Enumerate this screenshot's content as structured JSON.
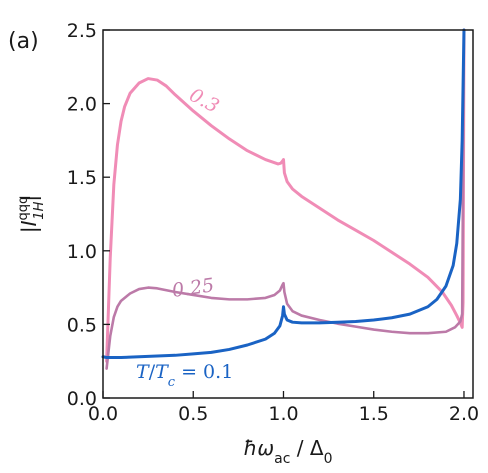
{
  "panel_label": "(a)",
  "chart_data": {
    "type": "line",
    "title": "",
    "xlabel": "ħω_ac / Δ_0",
    "ylabel": "|I_{1H}^{qqq}|",
    "xlim": [
      0.0,
      2.05
    ],
    "ylim": [
      0.0,
      2.5
    ],
    "xticks": [
      0.0,
      0.5,
      1.0,
      1.5,
      2.0
    ],
    "xtick_labels": [
      "0.0",
      "0.5",
      "1.0",
      "1.5",
      "2.0"
    ],
    "yticks": [
      0.0,
      0.5,
      1.0,
      1.5,
      2.0,
      2.5
    ],
    "ytick_labels": [
      "0.0",
      "0.5",
      "1.0",
      "1.5",
      "2.0",
      "2.5"
    ],
    "grid": false,
    "series": [
      {
        "name": "0.3",
        "label_text": "0.3",
        "color": "#f08cb6",
        "points": [
          [
            0.02,
            0.25
          ],
          [
            0.04,
            0.95
          ],
          [
            0.06,
            1.45
          ],
          [
            0.08,
            1.72
          ],
          [
            0.1,
            1.88
          ],
          [
            0.12,
            1.98
          ],
          [
            0.15,
            2.07
          ],
          [
            0.2,
            2.14
          ],
          [
            0.25,
            2.17
          ],
          [
            0.3,
            2.16
          ],
          [
            0.35,
            2.12
          ],
          [
            0.4,
            2.06
          ],
          [
            0.5,
            1.95
          ],
          [
            0.6,
            1.85
          ],
          [
            0.7,
            1.76
          ],
          [
            0.8,
            1.68
          ],
          [
            0.9,
            1.62
          ],
          [
            0.97,
            1.59
          ],
          [
            0.985,
            1.595
          ],
          [
            0.995,
            1.61
          ],
          [
            1.0,
            1.62
          ],
          [
            1.005,
            1.53
          ],
          [
            1.02,
            1.47
          ],
          [
            1.05,
            1.42
          ],
          [
            1.1,
            1.37
          ],
          [
            1.2,
            1.29
          ],
          [
            1.3,
            1.21
          ],
          [
            1.4,
            1.14
          ],
          [
            1.5,
            1.07
          ],
          [
            1.6,
            0.99
          ],
          [
            1.7,
            0.91
          ],
          [
            1.8,
            0.82
          ],
          [
            1.88,
            0.72
          ],
          [
            1.93,
            0.63
          ],
          [
            1.96,
            0.56
          ],
          [
            1.98,
            0.51
          ],
          [
            1.99,
            0.48
          ],
          [
            1.995,
            0.65
          ],
          [
            2.0,
            2.5
          ]
        ]
      },
      {
        "name": "0.25",
        "label_text": "0.25",
        "color": "#bc7aa8",
        "points": [
          [
            0.02,
            0.2
          ],
          [
            0.04,
            0.42
          ],
          [
            0.06,
            0.55
          ],
          [
            0.08,
            0.62
          ],
          [
            0.1,
            0.66
          ],
          [
            0.15,
            0.71
          ],
          [
            0.2,
            0.74
          ],
          [
            0.25,
            0.75
          ],
          [
            0.3,
            0.745
          ],
          [
            0.4,
            0.72
          ],
          [
            0.5,
            0.7
          ],
          [
            0.6,
            0.68
          ],
          [
            0.7,
            0.67
          ],
          [
            0.8,
            0.67
          ],
          [
            0.9,
            0.68
          ],
          [
            0.95,
            0.7
          ],
          [
            0.98,
            0.73
          ],
          [
            0.995,
            0.77
          ],
          [
            1.0,
            0.78
          ],
          [
            1.005,
            0.72
          ],
          [
            1.02,
            0.64
          ],
          [
            1.05,
            0.59
          ],
          [
            1.1,
            0.56
          ],
          [
            1.2,
            0.53
          ],
          [
            1.3,
            0.505
          ],
          [
            1.4,
            0.485
          ],
          [
            1.5,
            0.465
          ],
          [
            1.6,
            0.45
          ],
          [
            1.7,
            0.44
          ],
          [
            1.8,
            0.44
          ],
          [
            1.9,
            0.45
          ],
          [
            1.95,
            0.48
          ],
          [
            1.98,
            0.52
          ],
          [
            1.99,
            0.57
          ],
          [
            2.0,
            2.5
          ]
        ]
      },
      {
        "name": "T/T_c = 0.1",
        "label_text": "T/T_c = 0.1",
        "color": "#1a63c4",
        "points": [
          [
            0.0,
            0.28
          ],
          [
            0.02,
            0.275
          ],
          [
            0.1,
            0.275
          ],
          [
            0.2,
            0.28
          ],
          [
            0.3,
            0.285
          ],
          [
            0.4,
            0.29
          ],
          [
            0.5,
            0.3
          ],
          [
            0.6,
            0.31
          ],
          [
            0.7,
            0.33
          ],
          [
            0.8,
            0.36
          ],
          [
            0.9,
            0.4
          ],
          [
            0.95,
            0.44
          ],
          [
            0.98,
            0.49
          ],
          [
            0.995,
            0.56
          ],
          [
            1.0,
            0.62
          ],
          [
            1.005,
            0.57
          ],
          [
            1.02,
            0.53
          ],
          [
            1.05,
            0.515
          ],
          [
            1.1,
            0.51
          ],
          [
            1.2,
            0.51
          ],
          [
            1.3,
            0.515
          ],
          [
            1.4,
            0.52
          ],
          [
            1.5,
            0.53
          ],
          [
            1.6,
            0.545
          ],
          [
            1.7,
            0.57
          ],
          [
            1.8,
            0.62
          ],
          [
            1.85,
            0.67
          ],
          [
            1.9,
            0.76
          ],
          [
            1.94,
            0.9
          ],
          [
            1.96,
            1.05
          ],
          [
            1.98,
            1.35
          ],
          [
            1.99,
            1.75
          ],
          [
            2.0,
            2.5
          ]
        ]
      }
    ]
  }
}
